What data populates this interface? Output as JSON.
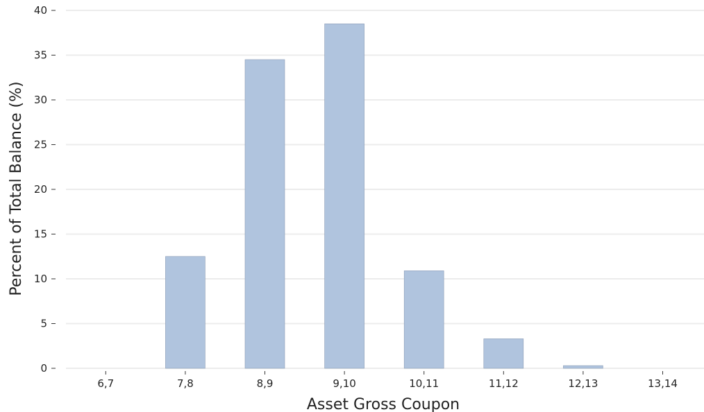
{
  "chart_data": {
    "type": "bar",
    "title": "",
    "xlabel": "Asset Gross Coupon",
    "ylabel": "Percent of Total Balance (%)",
    "categories": [
      "6,7",
      "7,8",
      "8,9",
      "9,10",
      "10,11",
      "11,12",
      "12,13",
      "13,14"
    ],
    "values": [
      0,
      12.5,
      34.5,
      38.5,
      10.9,
      3.3,
      0.3,
      0
    ],
    "ylim": [
      0,
      40
    ],
    "yticks": [
      0,
      5,
      10,
      15,
      20,
      25,
      30,
      35,
      40
    ],
    "grid": "horizontal",
    "legend": "none",
    "colors": {
      "bar": "#b0c4de",
      "bar_edge": "#8a9bb5",
      "grid": "#ececec",
      "text": "#222222"
    }
  }
}
